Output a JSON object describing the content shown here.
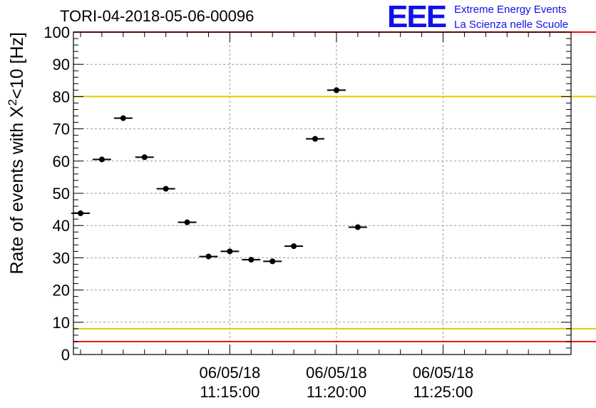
{
  "title": "TORI-04-2018-05-06-00096",
  "logo": {
    "mark": "EEE",
    "line1": "Extreme Energy Events",
    "line2": "La Scienza nelle Scuole"
  },
  "colors": {
    "red_line": "#ee1111",
    "yellow_line": "#e8c800",
    "logo": "#1010ee",
    "points": "#000000",
    "grid": "#9a9a9a"
  },
  "chart_data": {
    "type": "scatter",
    "title": "TORI-04-2018-05-06-00096",
    "ylabel_main": "Rate of events with X",
    "ylabel_sup": "2",
    "ylabel_tail": "<10 [Hz]",
    "ylim": [
      0,
      100
    ],
    "yticks": [
      0,
      10,
      20,
      30,
      40,
      50,
      60,
      70,
      80,
      90,
      100
    ],
    "xlim_seconds": [
      -440,
      960
    ],
    "x_ticks": [
      {
        "t": 0,
        "date": "06/05/18",
        "time": "11:15:00"
      },
      {
        "t": 300,
        "date": "06/05/18",
        "time": "11:20:00"
      },
      {
        "t": 600,
        "date": "06/05/18",
        "time": "11:25:00"
      }
    ],
    "x_reference": "06/05/18 11:15:00",
    "bin_halfwidth_seconds": 30,
    "points": [
      {
        "t": -420,
        "y": 43.8
      },
      {
        "t": -360,
        "y": 60.5
      },
      {
        "t": -300,
        "y": 73.3
      },
      {
        "t": -240,
        "y": 61.2
      },
      {
        "t": -180,
        "y": 51.4
      },
      {
        "t": -120,
        "y": 41.0
      },
      {
        "t": -60,
        "y": 30.4
      },
      {
        "t": 0,
        "y": 32.0
      },
      {
        "t": 60,
        "y": 29.4
      },
      {
        "t": 120,
        "y": 28.9
      },
      {
        "t": 180,
        "y": 33.6
      },
      {
        "t": 240,
        "y": 66.9
      },
      {
        "t": 300,
        "y": 82.0
      },
      {
        "t": 360,
        "y": 39.5
      }
    ],
    "horizontal_lines": [
      {
        "y": 100,
        "color": "red"
      },
      {
        "y": 80,
        "color": "yellow"
      },
      {
        "y": 8,
        "color": "yellow"
      },
      {
        "y": 4,
        "color": "red"
      }
    ],
    "grid": true
  }
}
